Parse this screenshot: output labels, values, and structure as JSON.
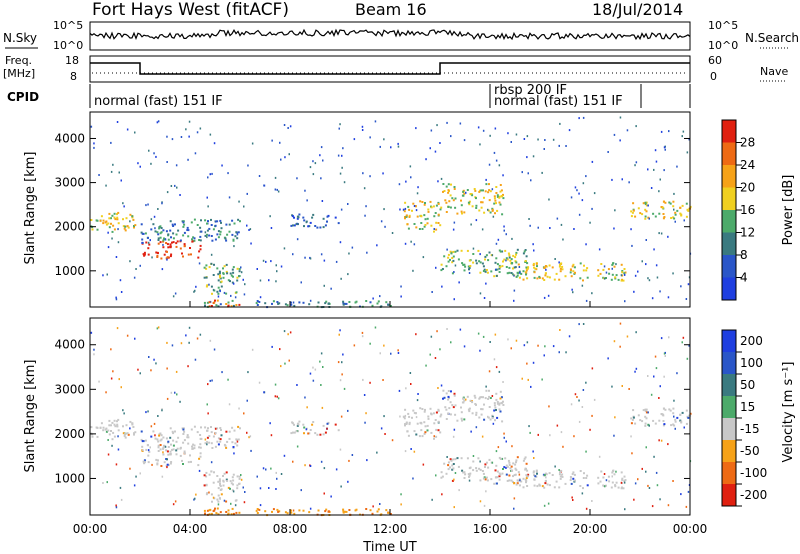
{
  "header": {
    "station": "Fort Hays West (fitACF)",
    "beam": "Beam 16",
    "date": "18/Jul/2014"
  },
  "strip_labels": {
    "nsky": "N.Sky",
    "nsky_ticks": [
      "10^5",
      "10^0"
    ],
    "nsearch": "N.Search",
    "nsearch_ticks": [
      "10^5",
      "10^0"
    ],
    "freq": "Freq.",
    "freq_unit": "[MHz]",
    "freq_ticks": [
      "18",
      "8"
    ],
    "nave": "Nave",
    "nave_ticks": [
      "60",
      "0"
    ],
    "cpid": "CPID"
  },
  "cpid_modes": [
    {
      "label": "normal (fast) 151 IF",
      "start_h": 0
    },
    {
      "label": "rbsp 200 IF",
      "start_h": 16
    },
    {
      "label": "normal (fast) 151 IF",
      "start_h": 16
    }
  ],
  "colors": {
    "power": [
      "#1f3fe0",
      "#2a56c8",
      "#3a7a80",
      "#4caa6a",
      "#f0d020",
      "#f6a218",
      "#ee6a14",
      "#e02010"
    ],
    "velocity": [
      "#1f3fe0",
      "#2a56c8",
      "#3a7a80",
      "#4caa6a",
      "#c8c8c8",
      "#f6a218",
      "#ee6a14",
      "#e02010"
    ]
  },
  "chart_data": [
    {
      "type": "heatmap",
      "name": "power",
      "xlabel": "",
      "ylabel": "Slant Range [km]",
      "xlim": [
        0,
        24
      ],
      "ylim": [
        180,
        4600
      ],
      "yticks": [
        "1000",
        "2000",
        "3000",
        "4000"
      ],
      "colorbar_label": "Power [dB]",
      "colorbar_ticks": [
        "4",
        "8",
        "12",
        "16",
        "20",
        "24",
        "28"
      ],
      "echo_bands": [
        {
          "t0": 0.0,
          "t1": 2.0,
          "r0": 1900,
          "r1": 2350,
          "level": 4
        },
        {
          "t0": 2.0,
          "t1": 4.5,
          "r0": 1300,
          "r1": 1700,
          "level": 7
        },
        {
          "t0": 2.0,
          "t1": 6.0,
          "r0": 1700,
          "r1": 2200,
          "level": 2
        },
        {
          "t0": 4.5,
          "t1": 6.0,
          "r0": 500,
          "r1": 1200,
          "level": 3
        },
        {
          "t0": 4.5,
          "t1": 12.0,
          "r0": 200,
          "r1": 350,
          "level": 2
        },
        {
          "t0": 4.5,
          "t1": 6.0,
          "r0": 200,
          "r1": 350,
          "level": 6
        },
        {
          "t0": 8.0,
          "t1": 10.0,
          "r0": 2000,
          "r1": 2300,
          "level": 1
        },
        {
          "t0": 12.5,
          "t1": 14.0,
          "r0": 1900,
          "r1": 2600,
          "level": 4
        },
        {
          "t0": 14.0,
          "t1": 16.5,
          "r0": 2300,
          "r1": 3000,
          "level": 4
        },
        {
          "t0": 14.0,
          "t1": 17.5,
          "r0": 900,
          "r1": 1500,
          "level": 3
        },
        {
          "t0": 17.0,
          "t1": 21.5,
          "r0": 800,
          "r1": 1200,
          "level": 4
        },
        {
          "t0": 21.5,
          "t1": 24.0,
          "r0": 2200,
          "r1": 2600,
          "level": 4
        }
      ]
    },
    {
      "type": "heatmap",
      "name": "velocity",
      "xlabel": "Time UT",
      "ylabel": "Slant Range [km]",
      "xlim": [
        0,
        24
      ],
      "ylim": [
        180,
        4600
      ],
      "xticks": [
        "00:00",
        "04:00",
        "08:00",
        "12:00",
        "16:00",
        "20:00",
        "00:00"
      ],
      "yticks": [
        "1000",
        "2000",
        "3000",
        "4000"
      ],
      "colorbar_label": "Velocity [m s⁻¹]",
      "colorbar_ticks": [
        "200",
        "100",
        "50",
        "15",
        "-15",
        "-50",
        "-100",
        "-200"
      ]
    }
  ]
}
